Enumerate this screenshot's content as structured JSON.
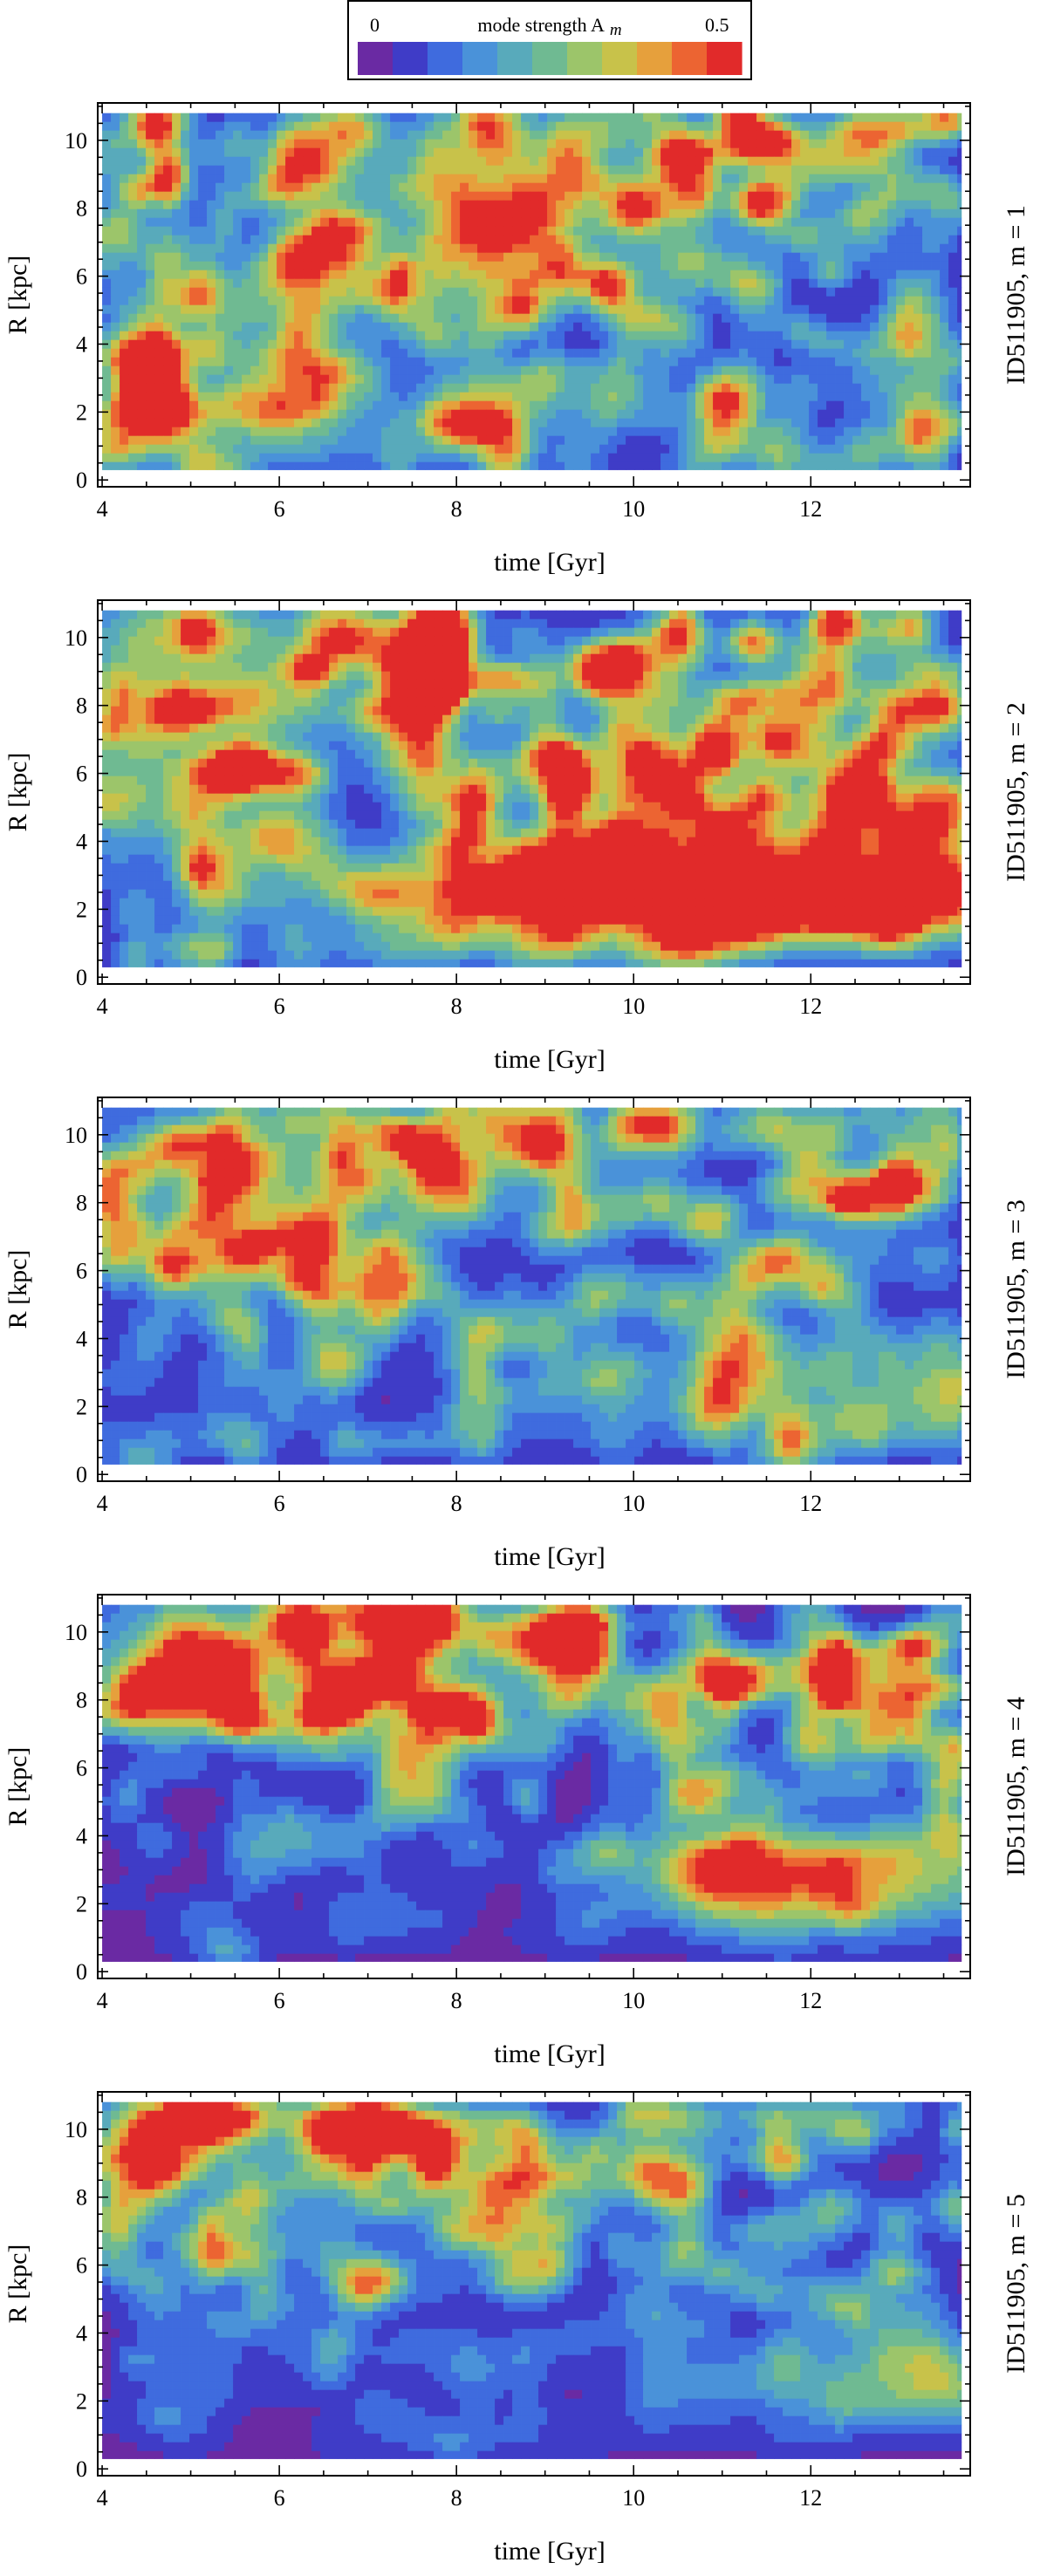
{
  "colorbar": {
    "min_label": "0",
    "max_label": "0.5",
    "title": "mode strength A",
    "title_sub": "m",
    "colors": [
      "#6a2aa3",
      "#3f3cc7",
      "#3f6bde",
      "#4a92d9",
      "#58aabb",
      "#6fba92",
      "#9cc56a",
      "#c8c24a",
      "#e6a03c",
      "#ec6432",
      "#e12a2a"
    ]
  },
  "chart_data": [
    {
      "type": "heatmap",
      "title": "ID511905,  m = 1",
      "xlabel": "time [Gyr]",
      "ylabel": "R [kpc]",
      "xlim": [
        3.95,
        13.8
      ],
      "ylim": [
        -0.2,
        11.1
      ],
      "xticks": [
        "4",
        "6",
        "8",
        "10",
        "12"
      ],
      "yticks": [
        "0",
        "2",
        "4",
        "6",
        "8",
        "10"
      ],
      "value_range": [
        0,
        0.5
      ],
      "features": [
        {
          "t": 4.7,
          "r": 2.0,
          "a": 0.38,
          "st": 0.25,
          "sr": 0.7
        },
        {
          "t": 4.6,
          "r": 4.2,
          "a": 0.26,
          "st": 0.3,
          "sr": 1.0
        },
        {
          "t": 5.3,
          "r": 1.9,
          "a": 0.22,
          "st": 0.5,
          "sr": 0.6
        },
        {
          "t": 6.3,
          "r": 2.5,
          "a": 0.2,
          "st": 0.5,
          "sr": 1.0
        },
        {
          "t": 6.5,
          "r": 6.5,
          "a": 0.2,
          "st": 0.4,
          "sr": 2.0
        },
        {
          "t": 8.5,
          "r": 8.5,
          "a": 0.15,
          "st": 1.5,
          "sr": 1.5
        }
      ],
      "background": {
        "base": 0.04,
        "outer_noise": 0.16,
        "inner_noise": 0.1
      }
    },
    {
      "type": "heatmap",
      "title": "ID511905,  m = 2",
      "xlabel": "time [Gyr]",
      "ylabel": "R [kpc]",
      "xlim": [
        3.95,
        13.8
      ],
      "ylim": [
        -0.2,
        11.1
      ],
      "xticks": [
        "4",
        "6",
        "8",
        "10",
        "12"
      ],
      "yticks": [
        "0",
        "2",
        "4",
        "6",
        "8",
        "10"
      ],
      "value_range": [
        0,
        0.5
      ],
      "features": [
        {
          "t": 12.8,
          "r": 2.4,
          "a": 0.5,
          "st": 1.6,
          "sr": 0.9
        },
        {
          "t": 10.8,
          "r": 2.6,
          "a": 0.36,
          "st": 1.2,
          "sr": 1.0
        },
        {
          "t": 9.0,
          "r": 2.6,
          "a": 0.24,
          "st": 1.2,
          "sr": 1.0
        },
        {
          "t": 7.6,
          "r": 2.6,
          "a": 0.16,
          "st": 0.7,
          "sr": 0.9
        },
        {
          "t": 12.5,
          "r": 5.0,
          "a": 0.14,
          "st": 1.5,
          "sr": 1.0
        },
        {
          "t": 5.0,
          "r": 9.0,
          "a": 0.2,
          "st": 1.2,
          "sr": 2.0
        }
      ],
      "background": {
        "base": 0.05,
        "outer_noise": 0.18,
        "inner_noise": 0.08
      }
    },
    {
      "type": "heatmap",
      "title": "ID511905,  m = 3",
      "xlabel": "time [Gyr]",
      "ylabel": "R [kpc]",
      "xlim": [
        3.95,
        13.8
      ],
      "ylim": [
        -0.2,
        11.1
      ],
      "xticks": [
        "4",
        "6",
        "8",
        "10",
        "12"
      ],
      "yticks": [
        "0",
        "2",
        "4",
        "6",
        "8",
        "10"
      ],
      "value_range": [
        0,
        0.5
      ],
      "features": [
        {
          "t": 13.4,
          "r": 2.3,
          "a": 0.24,
          "st": 0.6,
          "sr": 0.9
        },
        {
          "t": 11.0,
          "r": 2.4,
          "a": 0.18,
          "st": 0.7,
          "sr": 1.0
        },
        {
          "t": 5.5,
          "r": 9.5,
          "a": 0.16,
          "st": 1.3,
          "sr": 1.5
        },
        {
          "t": 8.3,
          "r": 9.0,
          "a": 0.12,
          "st": 1.3,
          "sr": 1.5
        }
      ],
      "background": {
        "base": 0.03,
        "outer_noise": 0.15,
        "inner_noise": 0.07
      }
    },
    {
      "type": "heatmap",
      "title": "ID511905,  m = 4",
      "xlabel": "time [Gyr]",
      "ylabel": "R [kpc]",
      "xlim": [
        3.95,
        13.8
      ],
      "ylim": [
        -0.2,
        11.1
      ],
      "xticks": [
        "4",
        "6",
        "8",
        "10",
        "12"
      ],
      "yticks": [
        "0",
        "2",
        "4",
        "6",
        "8",
        "10"
      ],
      "value_range": [
        0,
        0.5
      ],
      "features": [
        {
          "t": 12.6,
          "r": 2.8,
          "a": 0.3,
          "st": 1.4,
          "sr": 1.1
        },
        {
          "t": 11.0,
          "r": 2.8,
          "a": 0.2,
          "st": 0.8,
          "sr": 1.0
        },
        {
          "t": 5.2,
          "r": 9.5,
          "a": 0.2,
          "st": 1.3,
          "sr": 1.5
        },
        {
          "t": 7.8,
          "r": 9.0,
          "a": 0.14,
          "st": 1.4,
          "sr": 1.5
        }
      ],
      "background": {
        "base": 0.02,
        "outer_noise": 0.16,
        "inner_noise": 0.03
      }
    },
    {
      "type": "heatmap",
      "title": "ID511905,  m = 5",
      "xlabel": "time [Gyr]",
      "ylabel": "R [kpc]",
      "xlim": [
        3.95,
        13.8
      ],
      "ylim": [
        -0.2,
        11.1
      ],
      "xticks": [
        "4",
        "6",
        "8",
        "10",
        "12"
      ],
      "yticks": [
        "0",
        "2",
        "4",
        "6",
        "8",
        "10"
      ],
      "value_range": [
        0,
        0.5
      ],
      "features": [
        {
          "t": 13.5,
          "r": 2.6,
          "a": 0.22,
          "st": 0.4,
          "sr": 0.9
        },
        {
          "t": 12.6,
          "r": 2.5,
          "a": 0.16,
          "st": 0.6,
          "sr": 1.0
        },
        {
          "t": 10.8,
          "r": 2.5,
          "a": 0.12,
          "st": 0.6,
          "sr": 1.0
        },
        {
          "t": 4.8,
          "r": 10.0,
          "a": 0.2,
          "st": 0.8,
          "sr": 1.0
        },
        {
          "t": 7.5,
          "r": 9.0,
          "a": 0.14,
          "st": 1.5,
          "sr": 1.5
        }
      ],
      "background": {
        "base": 0.02,
        "outer_noise": 0.15,
        "inner_noise": 0.03
      }
    }
  ]
}
